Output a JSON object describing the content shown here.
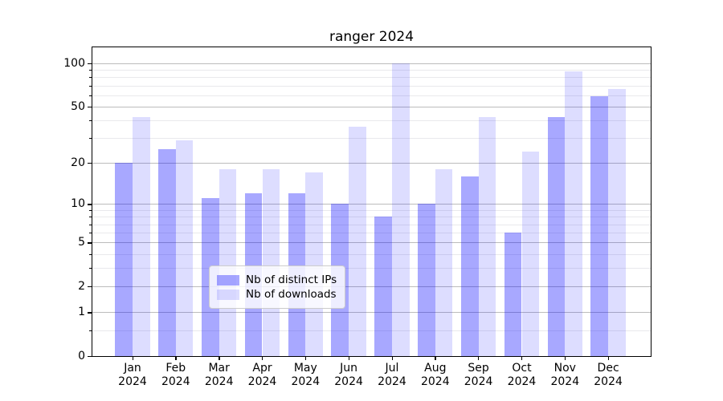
{
  "title": "ranger 2024",
  "legend": {
    "items": [
      {
        "label": "Nb of distinct IPs",
        "color": "rgba(0,0,255,0.34)"
      },
      {
        "label": "Nb of downloads",
        "color": "rgba(0,0,255,0.135)"
      }
    ]
  },
  "chart_data": {
    "type": "bar",
    "title": "ranger 2024",
    "categories": [
      "Jan 2024",
      "Feb 2024",
      "Mar 2024",
      "Apr 2024",
      "May 2024",
      "Jun 2024",
      "Jul 2024",
      "Aug 2024",
      "Sep 2024",
      "Oct 2024",
      "Nov 2024",
      "Dec 2024"
    ],
    "series": [
      {
        "name": "Nb of distinct IPs",
        "color": "rgba(0,0,255,0.34)",
        "values": [
          20,
          25,
          11,
          12,
          12,
          10,
          8,
          10,
          16,
          6,
          42,
          59
        ]
      },
      {
        "name": "Nb of downloads",
        "color": "rgba(0,0,255,0.135)",
        "values": [
          42,
          29,
          18,
          18,
          17,
          36,
          100,
          18,
          42,
          24,
          88,
          66
        ]
      }
    ],
    "y_scale": "log10(value+1)",
    "ylim": [
      0,
      129
    ],
    "y_major_ticks": [
      0,
      1,
      2,
      5,
      10,
      20,
      50,
      100
    ],
    "y_minor_ticks": [
      0.5,
      3,
      4,
      6,
      7,
      8,
      9,
      30,
      40,
      60,
      70,
      80,
      90
    ],
    "xlabel": "",
    "ylabel": "",
    "grid": "horizontal",
    "legend_position": "lower center"
  }
}
